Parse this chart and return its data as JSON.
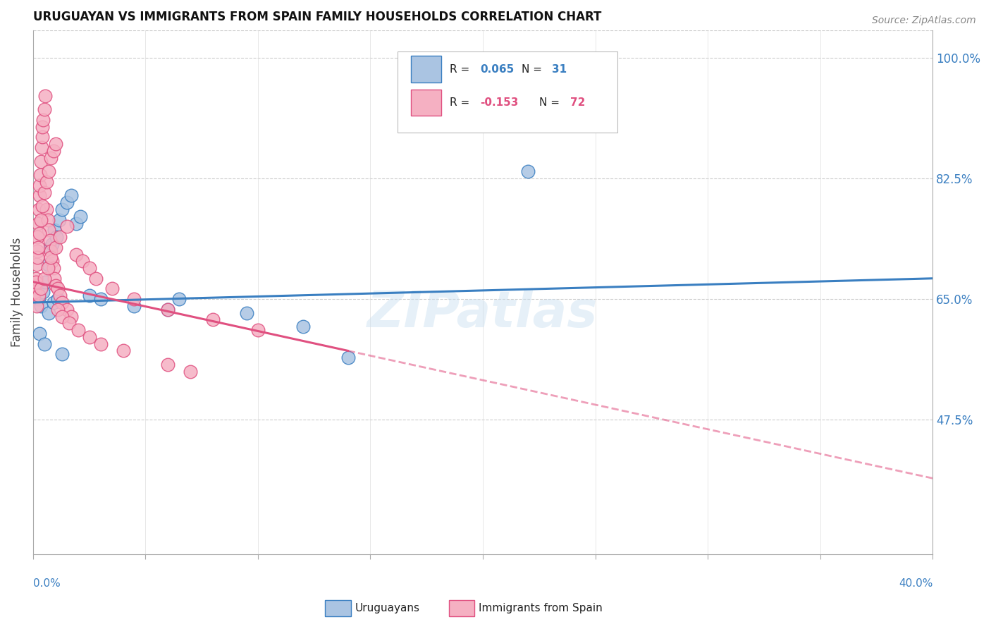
{
  "title": "URUGUAYAN VS IMMIGRANTS FROM SPAIN FAMILY HOUSEHOLDS CORRELATION CHART",
  "source": "Source: ZipAtlas.com",
  "ylabel": "Family Households",
  "right_yticks": [
    47.5,
    65.0,
    82.5,
    100.0
  ],
  "right_ytick_labels": [
    "47.5%",
    "65.0%",
    "82.5%",
    "100.0%"
  ],
  "xlim": [
    0.0,
    40.0
  ],
  "ylim": [
    28.0,
    104.0
  ],
  "color_uruguayan": "#aac4e2",
  "color_spain": "#f5b0c2",
  "color_line_uruguayan": "#3a7fc1",
  "color_line_spain": "#e05080",
  "watermark": "ZIPatlas",
  "uruguayan_x": [
    0.15,
    0.25,
    0.35,
    0.45,
    0.55,
    0.65,
    0.75,
    0.85,
    0.95,
    1.05,
    1.15,
    1.3,
    1.5,
    1.7,
    1.9,
    2.1,
    2.5,
    3.0,
    4.5,
    6.5,
    9.5,
    12.0,
    22.0,
    0.3,
    0.5,
    0.7,
    0.9,
    1.1,
    1.3,
    6.0,
    14.0
  ],
  "uruguayan_y": [
    66.5,
    65.0,
    64.0,
    66.0,
    67.5,
    70.0,
    72.5,
    73.0,
    75.0,
    74.0,
    76.5,
    78.0,
    79.0,
    80.0,
    76.0,
    77.0,
    65.5,
    65.0,
    64.0,
    65.0,
    63.0,
    61.0,
    83.5,
    60.0,
    58.5,
    63.0,
    64.5,
    65.0,
    57.0,
    63.5,
    56.5
  ],
  "spain_x": [
    0.05,
    0.1,
    0.12,
    0.15,
    0.18,
    0.2,
    0.22,
    0.25,
    0.28,
    0.3,
    0.32,
    0.35,
    0.38,
    0.4,
    0.42,
    0.45,
    0.5,
    0.55,
    0.6,
    0.65,
    0.7,
    0.75,
    0.8,
    0.85,
    0.9,
    0.95,
    1.0,
    1.1,
    1.2,
    1.3,
    1.5,
    1.7,
    1.9,
    2.2,
    2.5,
    2.8,
    3.5,
    4.5,
    6.0,
    8.0,
    10.0,
    0.08,
    0.12,
    0.18,
    0.22,
    0.28,
    0.35,
    0.42,
    0.5,
    0.6,
    0.7,
    0.8,
    0.9,
    1.0,
    1.1,
    1.3,
    1.6,
    2.0,
    2.5,
    3.0,
    4.0,
    6.0,
    7.0,
    0.15,
    0.25,
    0.35,
    0.5,
    0.65,
    0.8,
    1.0,
    1.2,
    1.5
  ],
  "spain_y": [
    65.5,
    67.0,
    68.0,
    70.0,
    72.0,
    74.0,
    76.0,
    78.0,
    80.0,
    81.5,
    83.0,
    85.0,
    87.0,
    88.5,
    90.0,
    91.0,
    92.5,
    94.5,
    78.0,
    76.5,
    75.0,
    73.5,
    72.0,
    70.5,
    69.5,
    68.0,
    67.0,
    66.5,
    65.5,
    64.5,
    63.5,
    62.5,
    71.5,
    70.5,
    69.5,
    68.0,
    66.5,
    65.0,
    63.5,
    62.0,
    60.5,
    66.0,
    67.5,
    71.0,
    72.5,
    74.5,
    76.5,
    78.5,
    80.5,
    82.0,
    83.5,
    85.5,
    86.5,
    87.5,
    63.5,
    62.5,
    61.5,
    60.5,
    59.5,
    58.5,
    57.5,
    55.5,
    54.5,
    64.0,
    65.5,
    66.5,
    68.0,
    69.5,
    71.0,
    72.5,
    74.0,
    75.5
  ],
  "u_line_x0": 0.0,
  "u_line_y0": 64.5,
  "u_line_x1": 40.0,
  "u_line_y1": 68.0,
  "s_line_x0": 0.0,
  "s_line_y0": 67.5,
  "s_line_x1": 14.0,
  "s_line_y1": 57.5,
  "s_dash_x0": 14.0,
  "s_dash_y0": 57.5,
  "s_dash_x1": 40.0,
  "s_dash_y1": 39.0
}
